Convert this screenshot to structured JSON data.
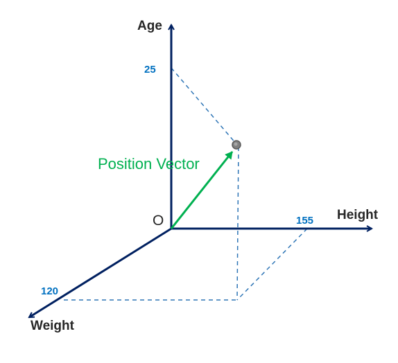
{
  "axes": {
    "age_label": "Age",
    "height_label": "Height",
    "weight_label": "Weight",
    "origin_label": "O"
  },
  "ticks": {
    "age": "25",
    "height": "155",
    "weight": "120"
  },
  "vector": {
    "label": "Position Vector"
  },
  "colors": {
    "axis": "#002060",
    "vector": "#00b050",
    "tick": "#0070c0",
    "guide": "#2e75b6",
    "point": "#808080",
    "text": "#262626"
  }
}
